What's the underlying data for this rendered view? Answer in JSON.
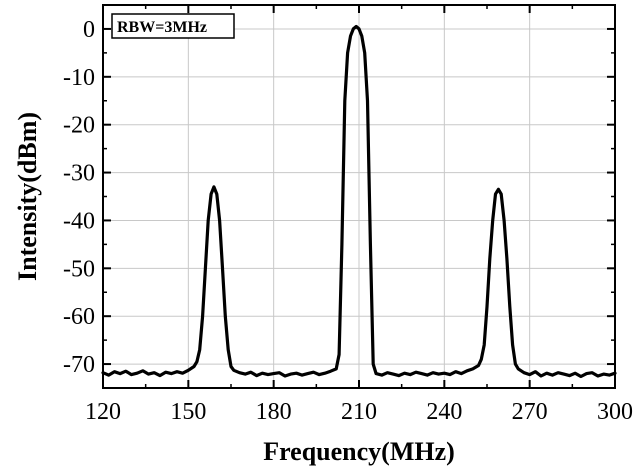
{
  "chart_data": {
    "type": "line",
    "xlabel": "Frequency(MHz)",
    "ylabel": "Intensity(dBm)",
    "xlim": [
      120,
      300
    ],
    "ylim": [
      -75,
      5
    ],
    "xticks": [
      120,
      150,
      180,
      210,
      240,
      270,
      300
    ],
    "yticks": [
      0,
      -10,
      -20,
      -30,
      -40,
      -50,
      -60,
      -70
    ],
    "grid": true,
    "annotation": "RBW=3MHz",
    "series": [
      {
        "name": "",
        "color": "#000000",
        "x": [
          120,
          122,
          124,
          126,
          128,
          130,
          132,
          134,
          136,
          138,
          140,
          142,
          144,
          146,
          148,
          150,
          152,
          153,
          154,
          155,
          156,
          157,
          158,
          159,
          160,
          161,
          162,
          163,
          164,
          165,
          166,
          168,
          170,
          172,
          174,
          176,
          178,
          180,
          182,
          184,
          186,
          188,
          190,
          192,
          194,
          196,
          198,
          200,
          202,
          203,
          204,
          205,
          206,
          207,
          208,
          209,
          210,
          211,
          212,
          213,
          214,
          215,
          216,
          218,
          220,
          222,
          224,
          226,
          228,
          230,
          232,
          234,
          236,
          238,
          240,
          242,
          244,
          246,
          248,
          250,
          252,
          253,
          254,
          255,
          256,
          257,
          258,
          259,
          260,
          261,
          262,
          263,
          264,
          265,
          266,
          268,
          270,
          272,
          274,
          276,
          278,
          280,
          282,
          284,
          286,
          288,
          290,
          292,
          294,
          296,
          298,
          300
        ],
        "y": [
          -71.8,
          -72.3,
          -71.6,
          -72.0,
          -71.5,
          -72.2,
          -71.9,
          -71.4,
          -72.1,
          -71.8,
          -72.4,
          -71.7,
          -72.0,
          -71.6,
          -71.9,
          -71.3,
          -70.5,
          -69.5,
          -67,
          -60,
          -50,
          -40,
          -34.5,
          -33,
          -34.5,
          -40,
          -50,
          -60,
          -67,
          -70.5,
          -71.3,
          -71.8,
          -72.1,
          -71.7,
          -72.4,
          -71.9,
          -72.2,
          -72.0,
          -71.8,
          -72.5,
          -72.1,
          -71.9,
          -72.3,
          -72.0,
          -71.7,
          -72.2,
          -71.9,
          -71.5,
          -71.0,
          -68,
          -45,
          -15,
          -5,
          -1.5,
          0,
          0.5,
          0,
          -1.5,
          -5,
          -15,
          -45,
          -70,
          -72,
          -72.3,
          -71.8,
          -72.1,
          -72.4,
          -71.9,
          -72.2,
          -71.7,
          -72.0,
          -72.3,
          -71.8,
          -72.1,
          -71.9,
          -72.2,
          -71.6,
          -72.0,
          -71.4,
          -71.0,
          -70.3,
          -69,
          -66,
          -58,
          -48,
          -40,
          -34.5,
          -33.5,
          -34.5,
          -40,
          -48,
          -58,
          -66,
          -70,
          -71.0,
          -71.8,
          -72.2,
          -71.6,
          -72.5,
          -71.9,
          -72.3,
          -71.8,
          -72.1,
          -72.4,
          -71.9,
          -72.6,
          -72.0,
          -71.8,
          -72.5,
          -72.1,
          -72.3,
          -71.9
        ]
      }
    ]
  }
}
